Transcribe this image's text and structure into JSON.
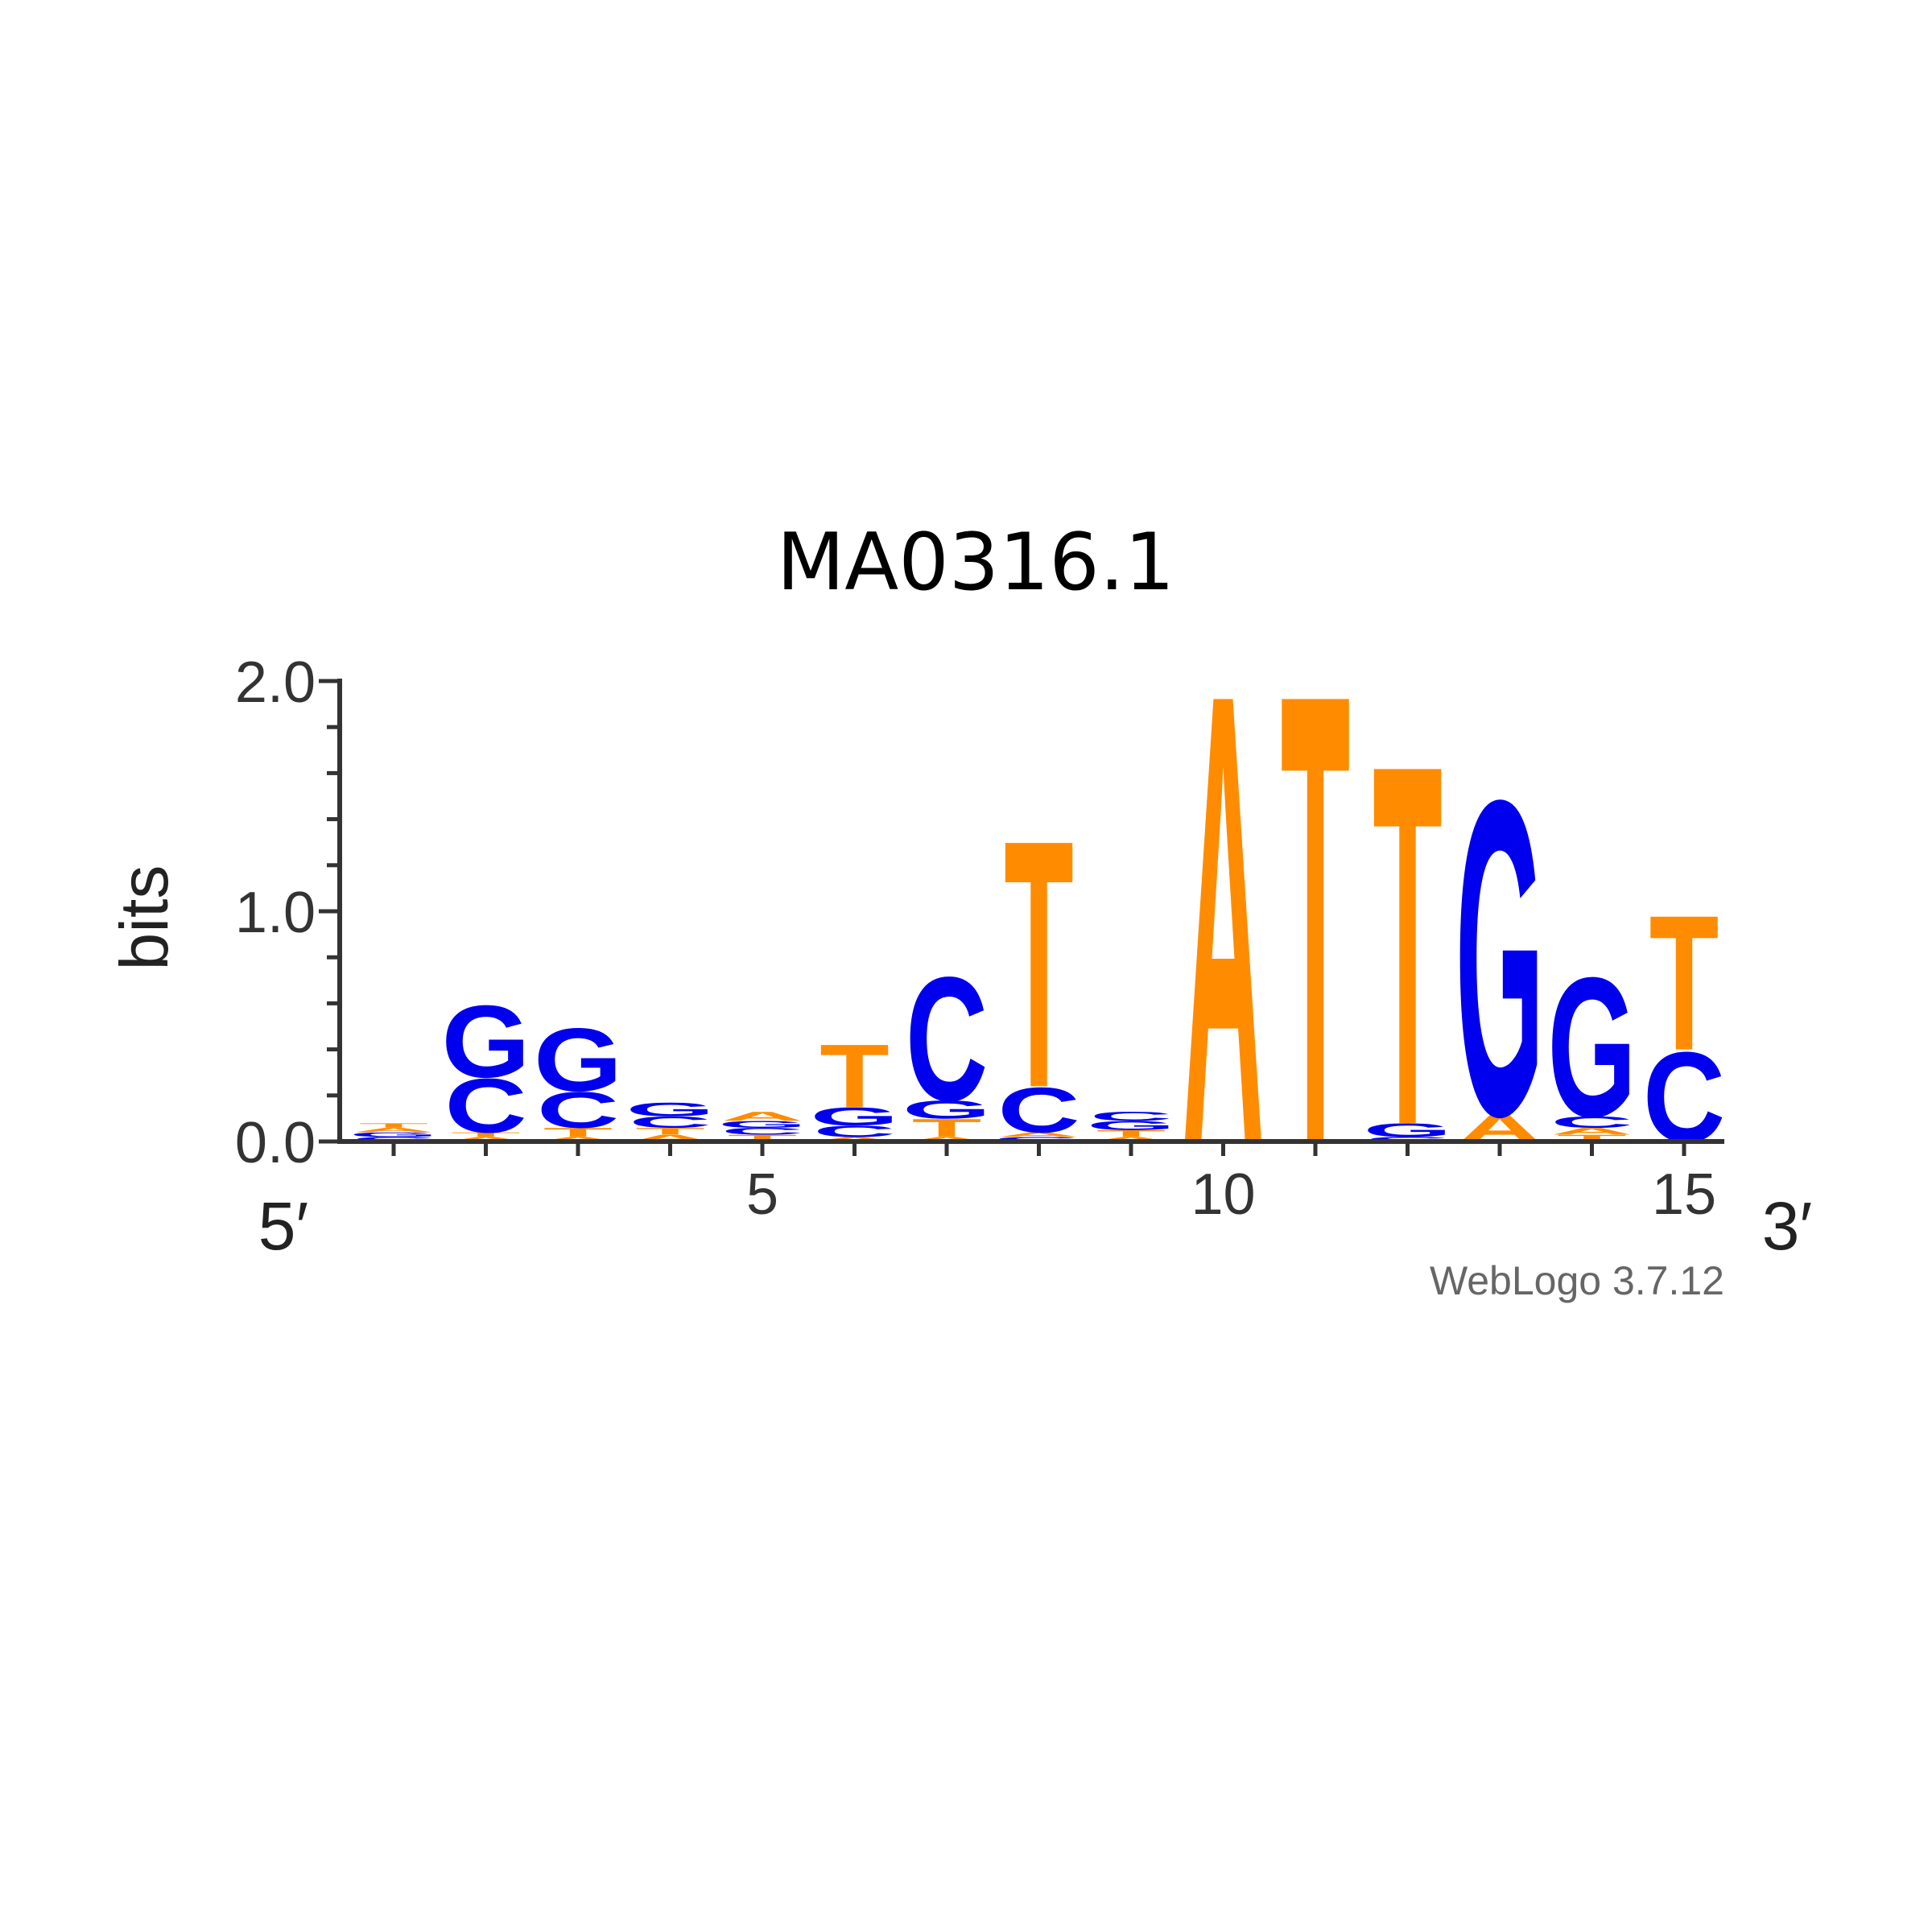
{
  "chart_data": {
    "type": "sequence_logo",
    "title": "MA0316.1",
    "ylabel": "bits",
    "ylim": [
      0,
      2.0
    ],
    "y_ticks": [
      {
        "value": 0.0,
        "label": "0.0"
      },
      {
        "value": 1.0,
        "label": "1.0"
      },
      {
        "value": 2.0,
        "label": "2.0"
      }
    ],
    "x_tick_labels": [
      {
        "position": 5,
        "label": "5"
      },
      {
        "position": 10,
        "label": "10"
      },
      {
        "position": 15,
        "label": "15"
      }
    ],
    "x_start_label": "5′",
    "x_end_label": "3′",
    "credit": "WebLogo 3.7.12",
    "colors": {
      "A": "#ff8c00",
      "T": "#ff8c00",
      "C": "#0000ee",
      "G": "#0000ee"
    },
    "positions": [
      {
        "pos": 1,
        "stack": [
          {
            "base": "C",
            "bits": 0.02
          },
          {
            "base": "G",
            "bits": 0.02
          },
          {
            "base": "A",
            "bits": 0.02
          },
          {
            "base": "T",
            "bits": 0.02
          }
        ]
      },
      {
        "pos": 2,
        "stack": [
          {
            "base": "A",
            "bits": 0.02
          },
          {
            "base": "T",
            "bits": 0.02
          },
          {
            "base": "C",
            "bits": 0.24
          },
          {
            "base": "G",
            "bits": 0.32
          }
        ]
      },
      {
        "pos": 3,
        "stack": [
          {
            "base": "A",
            "bits": 0.02
          },
          {
            "base": "T",
            "bits": 0.04
          },
          {
            "base": "C",
            "bits": 0.16
          },
          {
            "base": "G",
            "bits": 0.28
          }
        ]
      },
      {
        "pos": 4,
        "stack": [
          {
            "base": "A",
            "bits": 0.03
          },
          {
            "base": "T",
            "bits": 0.03
          },
          {
            "base": "C",
            "bits": 0.05
          },
          {
            "base": "G",
            "bits": 0.06
          }
        ]
      },
      {
        "pos": 5,
        "stack": [
          {
            "base": "T",
            "bits": 0.03
          },
          {
            "base": "C",
            "bits": 0.03
          },
          {
            "base": "G",
            "bits": 0.03
          },
          {
            "base": "A",
            "bits": 0.04
          }
        ]
      },
      {
        "pos": 6,
        "stack": [
          {
            "base": "A",
            "bits": 0.02
          },
          {
            "base": "C",
            "bits": 0.05
          },
          {
            "base": "G",
            "bits": 0.08
          },
          {
            "base": "T",
            "bits": 0.28
          }
        ]
      },
      {
        "pos": 7,
        "stack": [
          {
            "base": "A",
            "bits": 0.02
          },
          {
            "base": "T",
            "bits": 0.08
          },
          {
            "base": "G",
            "bits": 0.08
          },
          {
            "base": "C",
            "bits": 0.55
          }
        ]
      },
      {
        "pos": 8,
        "stack": [
          {
            "base": "G",
            "bits": 0.02
          },
          {
            "base": "A",
            "bits": 0.02
          },
          {
            "base": "C",
            "bits": 0.2
          },
          {
            "base": "T",
            "bits": 1.1
          }
        ]
      },
      {
        "pos": 9,
        "stack": [
          {
            "base": "A",
            "bits": 0.02
          },
          {
            "base": "T",
            "bits": 0.03
          },
          {
            "base": "G",
            "bits": 0.04
          },
          {
            "base": "C",
            "bits": 0.04
          }
        ]
      },
      {
        "pos": 10,
        "stack": [
          {
            "base": "A",
            "bits": 2.0
          }
        ]
      },
      {
        "pos": 11,
        "stack": [
          {
            "base": "T",
            "bits": 2.0
          }
        ]
      },
      {
        "pos": 12,
        "stack": [
          {
            "base": "C",
            "bits": 0.02
          },
          {
            "base": "G",
            "bits": 0.06
          },
          {
            "base": "T",
            "bits": 1.6
          }
        ]
      },
      {
        "pos": 13,
        "stack": [
          {
            "base": "A",
            "bits": 0.12
          },
          {
            "base": "G",
            "bits": 1.4
          }
        ]
      },
      {
        "pos": 14,
        "stack": [
          {
            "base": "T",
            "bits": 0.03
          },
          {
            "base": "A",
            "bits": 0.03
          },
          {
            "base": "C",
            "bits": 0.05
          },
          {
            "base": "G",
            "bits": 0.62
          }
        ]
      },
      {
        "pos": 15,
        "stack": [
          {
            "base": "C",
            "bits": 0.4
          },
          {
            "base": "T",
            "bits": 0.6
          }
        ]
      }
    ]
  }
}
